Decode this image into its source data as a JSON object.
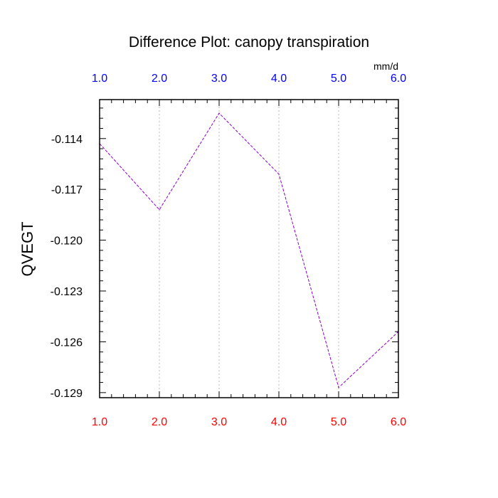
{
  "chart_data": {
    "type": "line",
    "title": "Difference Plot: canopy transpiration",
    "units": "mm/d",
    "ylabel": "QVEGT",
    "xlabel": "",
    "x": [
      1.0,
      2.0,
      3.0,
      4.0,
      5.0,
      6.0
    ],
    "x_ticks": [
      "1.0",
      "2.0",
      "3.0",
      "4.0",
      "5.0",
      "6.0"
    ],
    "xlim": [
      1.0,
      6.0
    ],
    "y_ticks": [
      "-0.114",
      "-0.117",
      "-0.120",
      "-0.123",
      "-0.126",
      "-0.129"
    ],
    "y_tick_values": [
      -0.114,
      -0.117,
      -0.12,
      -0.123,
      -0.126,
      -0.129
    ],
    "ylim": [
      -0.1293,
      -0.1117
    ],
    "series": [
      {
        "values": [
          -0.1143,
          -0.1182,
          -0.1125,
          -0.1161,
          -0.1287,
          -0.1254
        ],
        "color": "#8800cc",
        "style": "dashed"
      }
    ],
    "grid": "vertical dotted",
    "colors": {
      "top_tick_labels": "#0000ff",
      "bottom_tick_labels": "#ff0000",
      "gridline": "#bbbbbb",
      "axes": "#000000"
    }
  }
}
